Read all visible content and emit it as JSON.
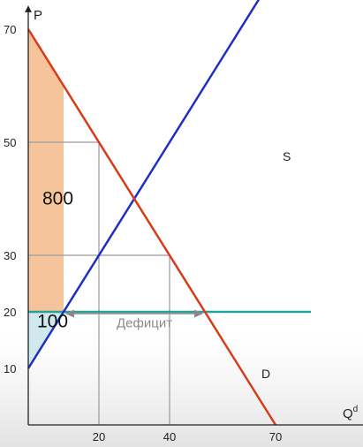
{
  "chart_data": {
    "type": "line",
    "xlabel": "Q",
    "xlabel_sup": "d",
    "ylabel": "P",
    "xlim": [
      0,
      75
    ],
    "ylim": [
      0,
      75
    ],
    "x_ticks": [
      "20",
      "40",
      "70"
    ],
    "x_tick_values": [
      20,
      40,
      70
    ],
    "y_ticks": [
      "10",
      "20",
      "30",
      "50",
      "70"
    ],
    "y_tick_values": [
      10,
      20,
      30,
      50,
      70
    ],
    "grid": false,
    "series": [
      {
        "name": "D",
        "color": "#d93a1b",
        "points": [
          [
            0,
            70
          ],
          [
            70,
            0
          ]
        ]
      },
      {
        "name": "S",
        "color": "#1f2fc4",
        "points": [
          [
            0,
            10
          ],
          [
            86,
            96
          ]
        ]
      },
      {
        "name": "",
        "color": "#2aa198",
        "points": [
          [
            0,
            20
          ],
          [
            80,
            20
          ]
        ]
      }
    ],
    "annotations": {
      "area_upper": "800",
      "area_lower": "100",
      "deficit": "Дефицит",
      "area_upper_color": "#f6c49a",
      "area_lower_color": "#cfe9ee"
    }
  }
}
